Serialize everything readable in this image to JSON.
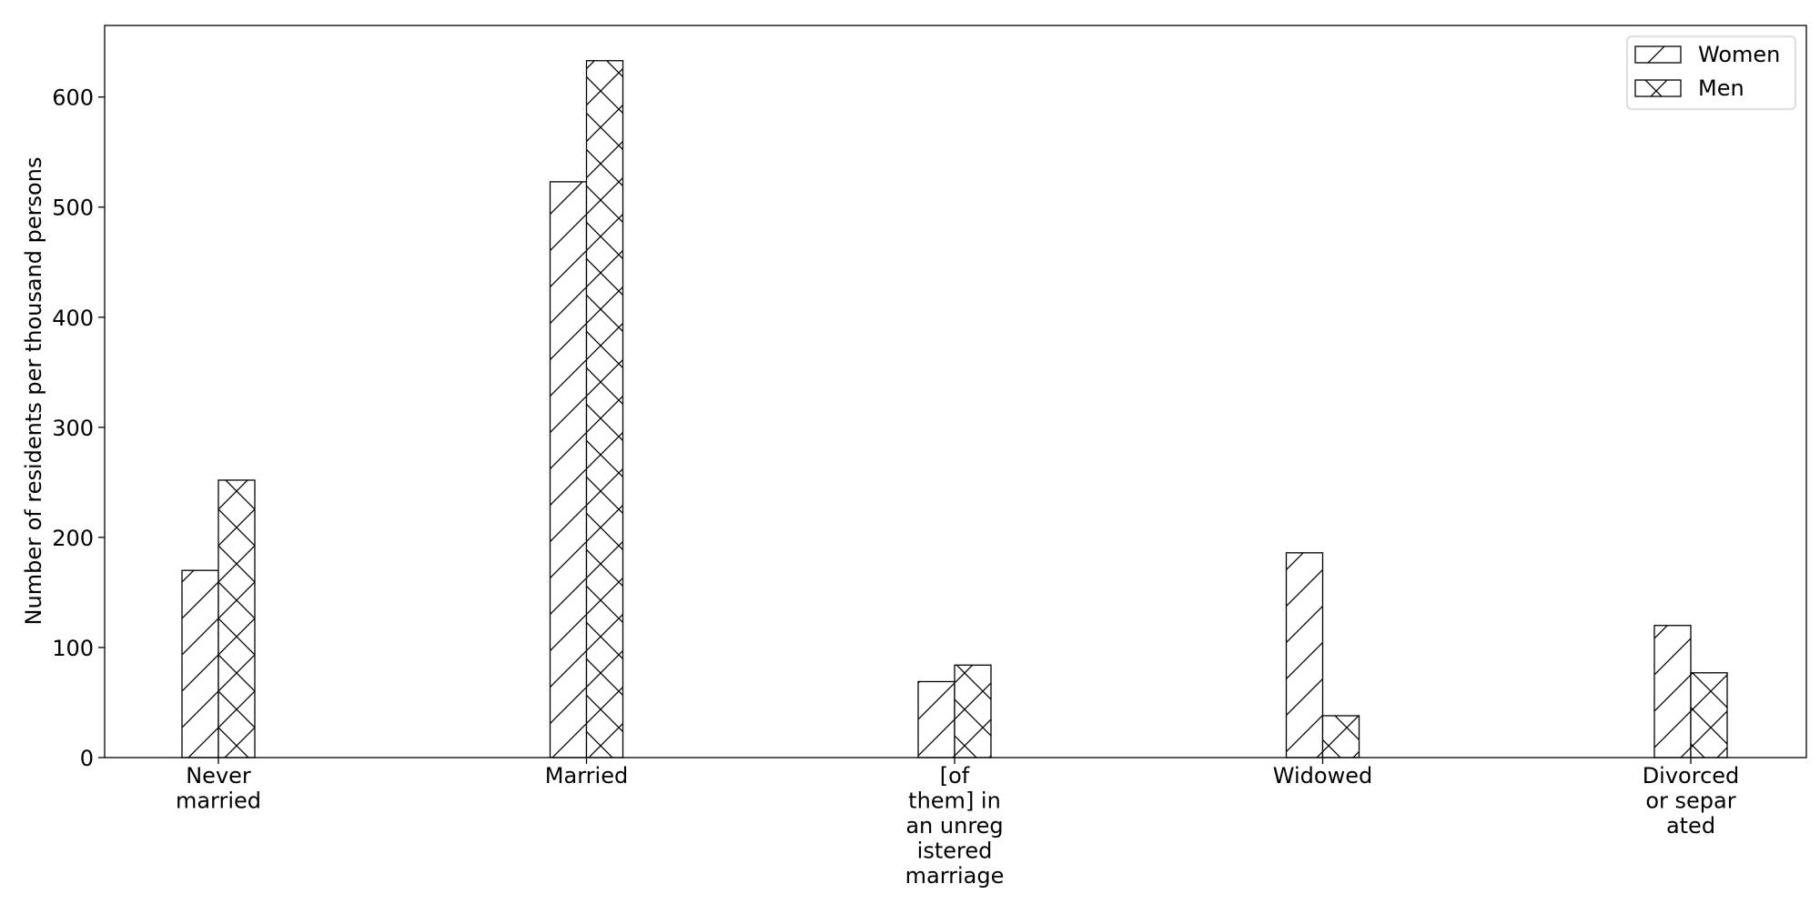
{
  "chart_data": {
    "type": "bar",
    "title": "",
    "xlabel": "",
    "ylabel": "Number of residents per thousand persons",
    "categories": [
      [
        "Never",
        "married"
      ],
      [
        "Married"
      ],
      [
        "[of",
        "them] in",
        "an unreg",
        "istered",
        "marriage"
      ],
      [
        "Widowed"
      ],
      [
        "Divorced",
        "or separ",
        "ated"
      ]
    ],
    "series": [
      {
        "name": "Women",
        "values": [
          170,
          523,
          69,
          186,
          120
        ],
        "hatch": "diagonal"
      },
      {
        "name": "Men",
        "values": [
          252,
          633,
          84,
          38,
          77
        ],
        "hatch": "cross"
      }
    ],
    "ylim": [
      0,
      665
    ],
    "yticks": [
      0,
      100,
      200,
      300,
      400,
      500,
      600
    ],
    "grid": false,
    "legend_position": "top-right",
    "colors": {
      "bar_fill": "#ffffff",
      "edge": "#000000"
    }
  }
}
